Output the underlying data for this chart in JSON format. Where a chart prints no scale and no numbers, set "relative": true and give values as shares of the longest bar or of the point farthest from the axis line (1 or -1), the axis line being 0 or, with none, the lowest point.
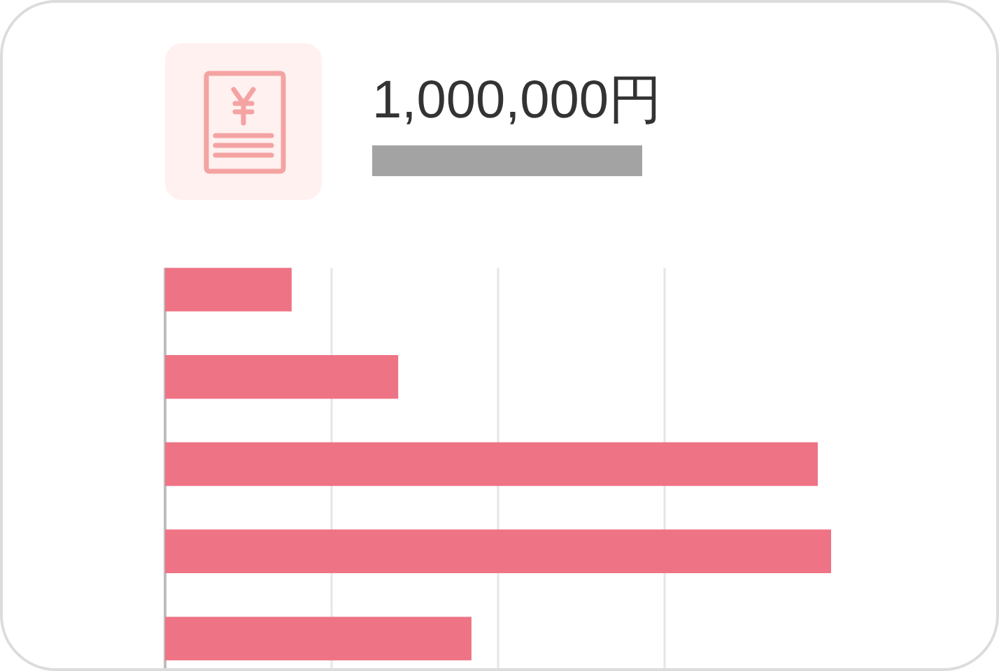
{
  "chart_data": {
    "type": "bar",
    "orientation": "horizontal",
    "title": "1,000,000円",
    "categories": [
      null,
      null,
      null,
      null,
      null
    ],
    "values": [
      0.19,
      0.35,
      0.98,
      1,
      0.46
    ],
    "color": "#ee7384",
    "relative": true,
    "grid": "x",
    "tick_labels": false
  }
}
